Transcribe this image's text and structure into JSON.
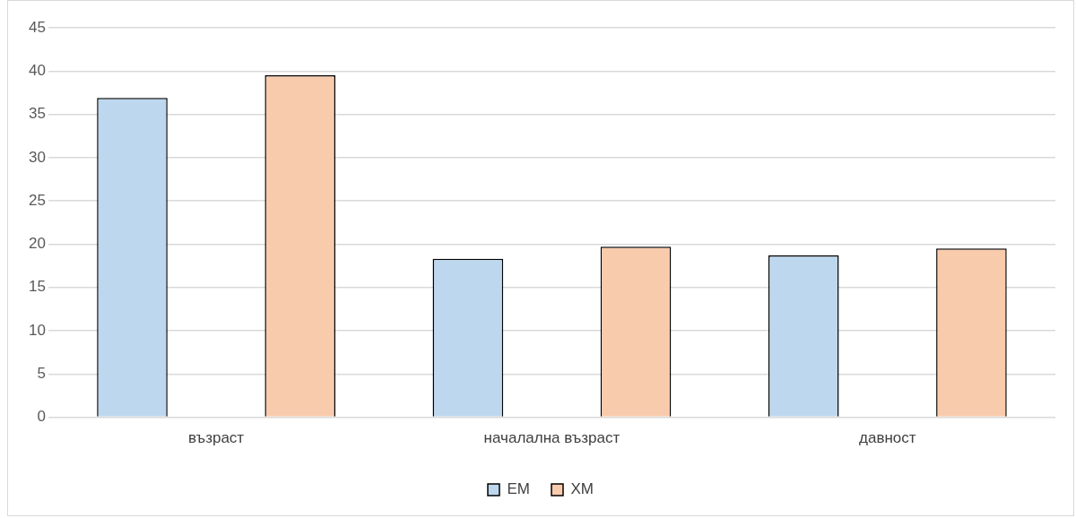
{
  "chart_data": {
    "type": "bar",
    "categories": [
      "възраст",
      "началална възраст",
      "давност"
    ],
    "series": [
      {
        "name": "ЕМ",
        "color": "#bdd7ee",
        "values": [
          36.9,
          18.3,
          18.7
        ]
      },
      {
        "name": "ХМ",
        "color": "#f8cbad",
        "values": [
          39.5,
          19.7,
          19.5
        ]
      }
    ],
    "ylim": [
      0,
      45
    ],
    "yticks": [
      0,
      5,
      10,
      15,
      20,
      25,
      30,
      35,
      40,
      45
    ],
    "grid": "y",
    "legend": "bottom"
  }
}
